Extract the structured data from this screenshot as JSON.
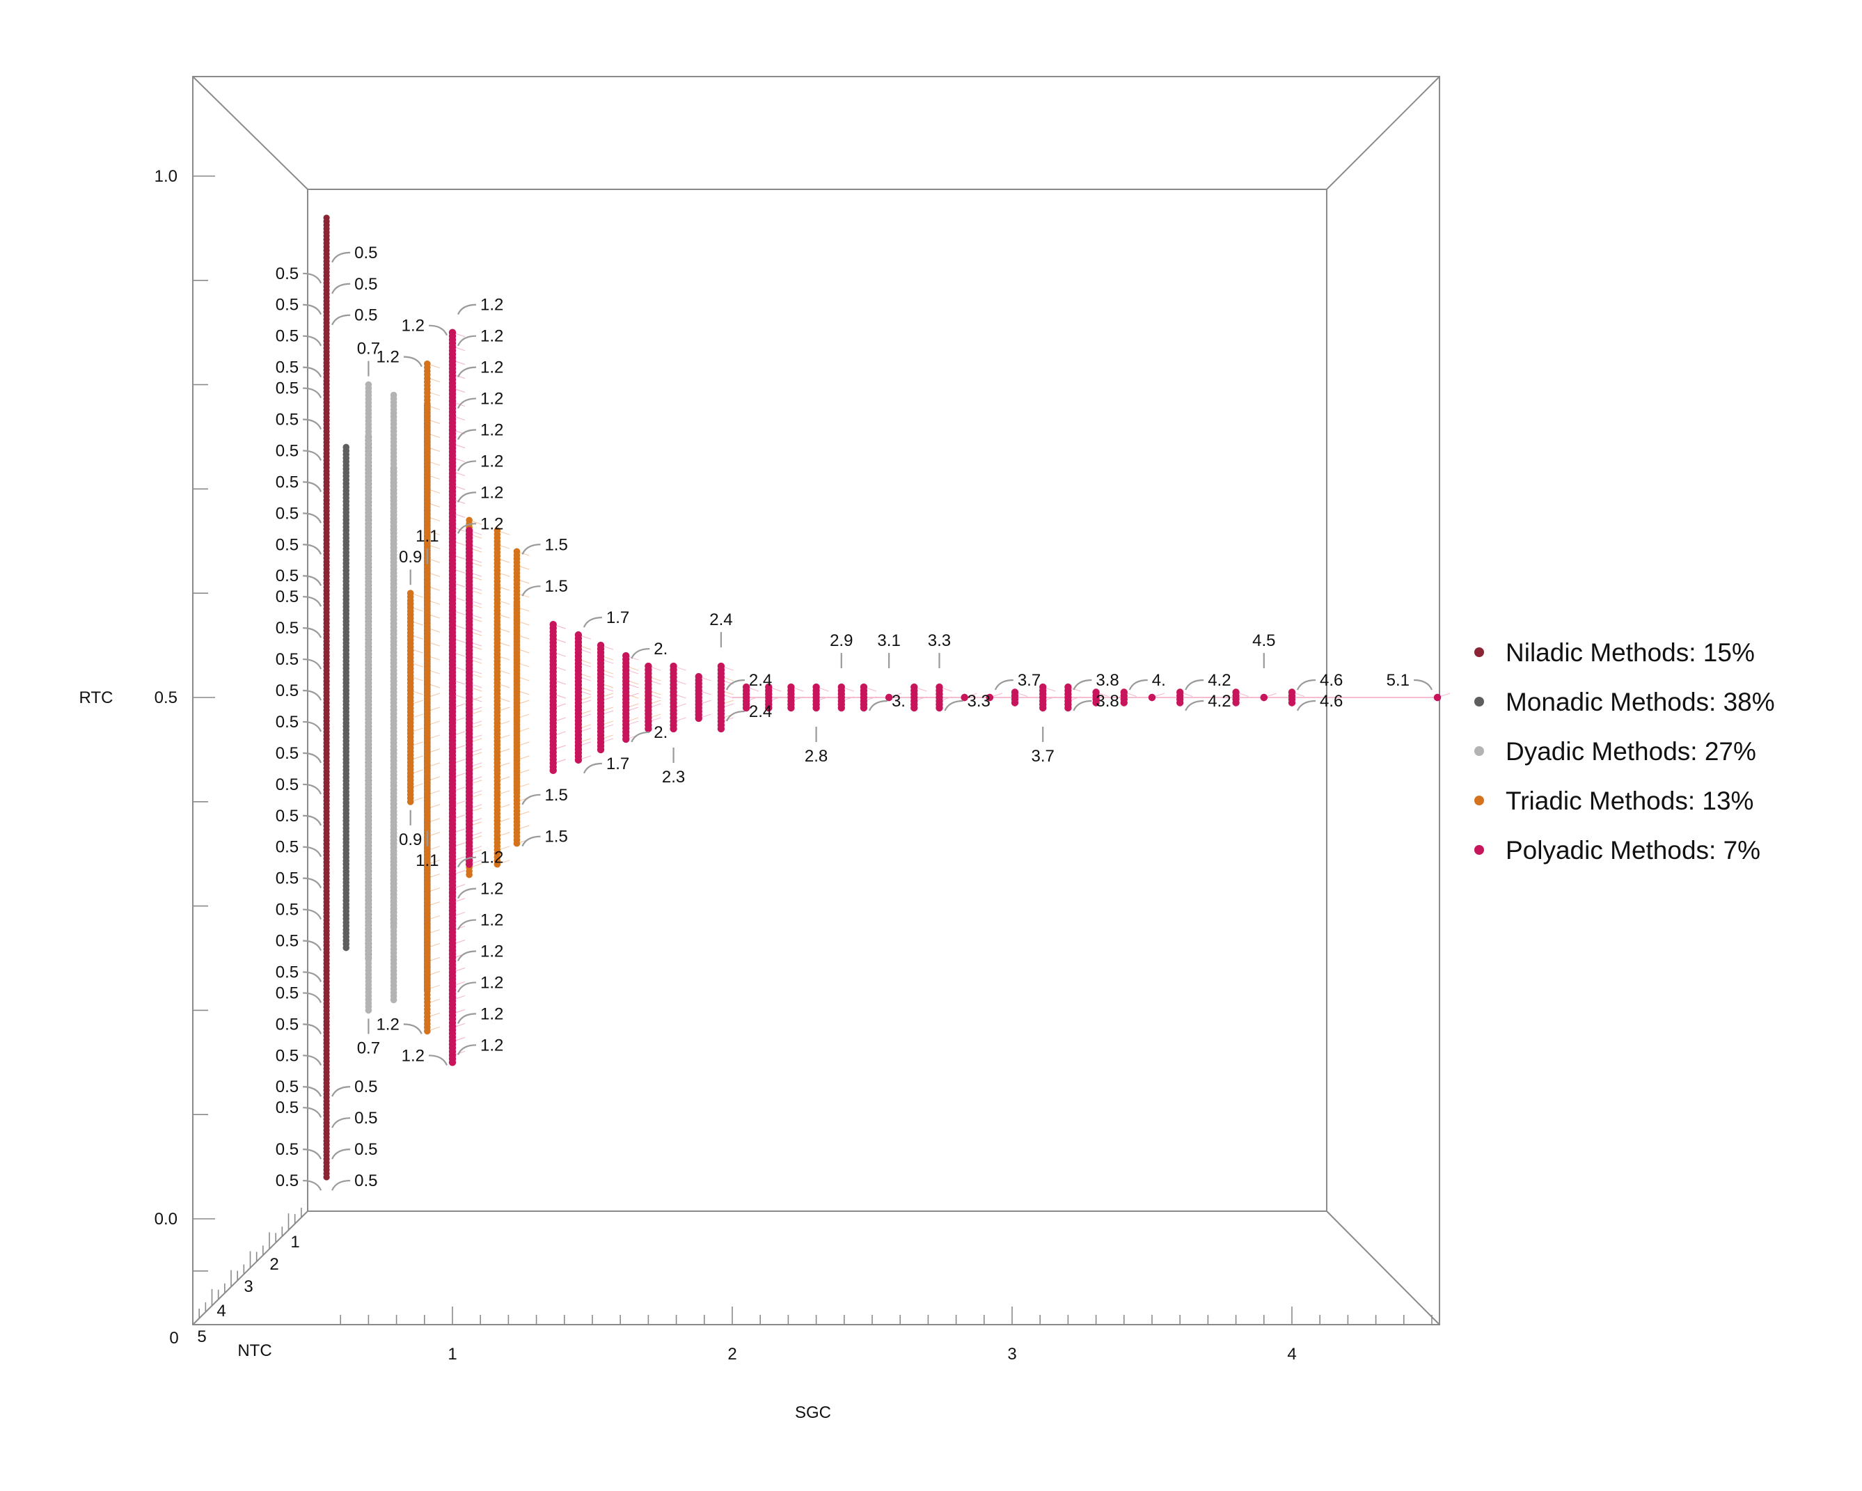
{
  "chart_data": {
    "type": "scatter",
    "projection": "3d",
    "grid": false,
    "legend_position": "right",
    "axes": {
      "x": {
        "label": "SGC",
        "ticks": [
          "1",
          "2",
          "3",
          "4"
        ],
        "range": [
          0.6,
          4.95
        ]
      },
      "y": {
        "label": "RTC",
        "ticks": [
          "0.0",
          "0.5",
          "1.0"
        ],
        "range": [
          -0.1,
          1.1
        ]
      },
      "z": {
        "label": "NTC",
        "ticks": [
          "0",
          "1",
          "2",
          "3",
          "4",
          "5"
        ]
      }
    },
    "legend": [
      {
        "name": "Niladic Methods: 15%",
        "color": "#8b2535"
      },
      {
        "name": "Monadic Methods: 38%",
        "color": "#5e5e5e"
      },
      {
        "name": "Dyadic Methods: 27%",
        "color": "#b3b3b3"
      },
      {
        "name": "Triadic Methods: 13%",
        "color": "#d4731c"
      },
      {
        "name": "Polyadic Methods: 7%",
        "color": "#c8145a"
      }
    ],
    "series": [
      {
        "name": "Niladic Methods: 15%",
        "color": "#8b2535",
        "columns": [
          {
            "x": 0.55,
            "y_min": 0.04,
            "y_max": 0.96
          }
        ]
      },
      {
        "name": "Monadic Methods: 38%",
        "color": "#5e5e5e",
        "columns": [
          {
            "x": 0.62,
            "y_min": 0.26,
            "y_max": 0.74
          },
          {
            "x": 0.7,
            "y_min": 0.25,
            "y_max": 0.75
          },
          {
            "x": 0.79,
            "y_min": 0.28,
            "y_max": 0.72
          },
          {
            "x": 0.91,
            "y_min": 0.22,
            "y_max": 0.78
          },
          {
            "x": 1.0,
            "y_min": 0.25,
            "y_max": 0.75
          }
        ]
      },
      {
        "name": "Dyadic Methods: 27%",
        "color": "#b3b3b3",
        "columns": [
          {
            "x": 0.7,
            "y_min": 0.2,
            "y_max": 0.8
          },
          {
            "x": 0.79,
            "y_min": 0.21,
            "y_max": 0.79
          },
          {
            "x": 0.85,
            "y_min": 0.41,
            "y_max": 0.59
          },
          {
            "x": 1.0,
            "y_min": 0.2,
            "y_max": 0.8
          },
          {
            "x": 1.06,
            "y_min": 0.38,
            "y_max": 0.62
          },
          {
            "x": 1.16,
            "y_min": 0.43,
            "y_max": 0.57
          },
          {
            "x": 1.23,
            "y_min": 0.41,
            "y_max": 0.59
          }
        ]
      },
      {
        "name": "Triadic Methods: 13%",
        "color": "#d4731c",
        "columns": [
          {
            "x": 0.85,
            "y_min": 0.4,
            "y_max": 0.6
          },
          {
            "x": 0.91,
            "y_min": 0.18,
            "y_max": 0.82
          },
          {
            "x": 1.0,
            "y_min": 0.15,
            "y_max": 0.85
          },
          {
            "x": 1.06,
            "y_min": 0.33,
            "y_max": 0.67
          },
          {
            "x": 1.16,
            "y_min": 0.34,
            "y_max": 0.66
          },
          {
            "x": 1.23,
            "y_min": 0.36,
            "y_max": 0.64
          },
          {
            "x": 1.36,
            "y_min": 0.43,
            "y_max": 0.57
          },
          {
            "x": 1.45,
            "y_min": 0.45,
            "y_max": 0.55
          },
          {
            "x": 1.53,
            "y_min": 0.46,
            "y_max": 0.54
          },
          {
            "x": 1.62,
            "y_min": 0.47,
            "y_max": 0.53
          },
          {
            "x": 1.7,
            "y_min": 0.48,
            "y_max": 0.52
          },
          {
            "x": 1.96,
            "y_min": 0.48,
            "y_max": 0.52
          }
        ]
      },
      {
        "name": "Polyadic Methods: 7%",
        "color": "#c8145a",
        "columns": [
          {
            "x": 1.0,
            "y_min": 0.15,
            "y_max": 0.85
          },
          {
            "x": 1.06,
            "y_min": 0.34,
            "y_max": 0.66
          },
          {
            "x": 1.36,
            "y_min": 0.43,
            "y_max": 0.57
          },
          {
            "x": 1.45,
            "y_min": 0.44,
            "y_max": 0.56
          },
          {
            "x": 1.53,
            "y_min": 0.45,
            "y_max": 0.55
          },
          {
            "x": 1.62,
            "y_min": 0.46,
            "y_max": 0.54
          },
          {
            "x": 1.7,
            "y_min": 0.47,
            "y_max": 0.53
          },
          {
            "x": 1.79,
            "y_min": 0.47,
            "y_max": 0.53
          },
          {
            "x": 1.88,
            "y_min": 0.48,
            "y_max": 0.52
          },
          {
            "x": 1.96,
            "y_min": 0.47,
            "y_max": 0.53
          },
          {
            "x": 2.05,
            "y_min": 0.49,
            "y_max": 0.51
          },
          {
            "x": 2.13,
            "y_min": 0.49,
            "y_max": 0.51
          },
          {
            "x": 2.21,
            "y_min": 0.49,
            "y_max": 0.51
          },
          {
            "x": 2.3,
            "y_min": 0.49,
            "y_max": 0.51
          },
          {
            "x": 2.39,
            "y_min": 0.49,
            "y_max": 0.51
          },
          {
            "x": 2.47,
            "y_min": 0.49,
            "y_max": 0.51
          },
          {
            "x": 2.56,
            "y_min": 0.5,
            "y_max": 0.5
          },
          {
            "x": 2.65,
            "y_min": 0.49,
            "y_max": 0.51
          },
          {
            "x": 2.74,
            "y_min": 0.49,
            "y_max": 0.51
          },
          {
            "x": 2.83,
            "y_min": 0.5,
            "y_max": 0.5
          },
          {
            "x": 2.92,
            "y_min": 0.5,
            "y_max": 0.5
          },
          {
            "x": 3.01,
            "y_min": 0.495,
            "y_max": 0.505
          },
          {
            "x": 3.11,
            "y_min": 0.49,
            "y_max": 0.51
          },
          {
            "x": 3.2,
            "y_min": 0.49,
            "y_max": 0.51
          },
          {
            "x": 3.3,
            "y_min": 0.495,
            "y_max": 0.505
          },
          {
            "x": 3.4,
            "y_min": 0.495,
            "y_max": 0.505
          },
          {
            "x": 3.5,
            "y_min": 0.5,
            "y_max": 0.5
          },
          {
            "x": 3.6,
            "y_min": 0.495,
            "y_max": 0.505
          },
          {
            "x": 3.8,
            "y_min": 0.495,
            "y_max": 0.505
          },
          {
            "x": 3.9,
            "y_min": 0.5,
            "y_max": 0.5
          },
          {
            "x": 4.0,
            "y_min": 0.495,
            "y_max": 0.505
          },
          {
            "x": 4.52,
            "y_min": 0.5,
            "y_max": 0.5
          }
        ]
      }
    ],
    "annotations": [
      {
        "text": "0.5",
        "x": 0.55,
        "y": 0.92,
        "side": "right"
      },
      {
        "text": "0.5",
        "x": 0.55,
        "y": 0.89,
        "side": "right"
      },
      {
        "text": "0.5",
        "x": 0.55,
        "y": 0.86,
        "side": "right"
      },
      {
        "text": "0.5",
        "x": 0.55,
        "y": 0.12,
        "side": "right"
      },
      {
        "text": "0.5",
        "x": 0.55,
        "y": 0.09,
        "side": "right"
      },
      {
        "text": "0.5",
        "x": 0.55,
        "y": 0.06,
        "side": "right"
      },
      {
        "text": "0.5",
        "x": 0.55,
        "y": 0.03,
        "side": "right"
      },
      {
        "text": "0.5",
        "x": 0.55,
        "y": 0.9,
        "side": "left"
      },
      {
        "text": "0.5",
        "x": 0.55,
        "y": 0.87,
        "side": "left"
      },
      {
        "text": "0.5",
        "x": 0.55,
        "y": 0.84,
        "side": "left"
      },
      {
        "text": "0.5",
        "x": 0.55,
        "y": 0.81,
        "side": "left"
      },
      {
        "text": "0.5",
        "x": 0.55,
        "y": 0.79,
        "side": "left"
      },
      {
        "text": "0.5",
        "x": 0.55,
        "y": 0.76,
        "side": "left"
      },
      {
        "text": "0.5",
        "x": 0.55,
        "y": 0.73,
        "side": "left"
      },
      {
        "text": "0.5",
        "x": 0.55,
        "y": 0.7,
        "side": "left"
      },
      {
        "text": "0.5",
        "x": 0.55,
        "y": 0.67,
        "side": "left"
      },
      {
        "text": "0.5",
        "x": 0.55,
        "y": 0.64,
        "side": "left"
      },
      {
        "text": "0.5",
        "x": 0.55,
        "y": 0.61,
        "side": "left"
      },
      {
        "text": "0.5",
        "x": 0.55,
        "y": 0.59,
        "side": "left"
      },
      {
        "text": "0.5",
        "x": 0.55,
        "y": 0.56,
        "side": "left"
      },
      {
        "text": "0.5",
        "x": 0.55,
        "y": 0.53,
        "side": "left"
      },
      {
        "text": "0.5",
        "x": 0.55,
        "y": 0.5,
        "side": "left"
      },
      {
        "text": "0.5",
        "x": 0.55,
        "y": 0.47,
        "side": "left"
      },
      {
        "text": "0.5",
        "x": 0.55,
        "y": 0.44,
        "side": "left"
      },
      {
        "text": "0.5",
        "x": 0.55,
        "y": 0.41,
        "side": "left"
      },
      {
        "text": "0.5",
        "x": 0.55,
        "y": 0.38,
        "side": "left"
      },
      {
        "text": "0.5",
        "x": 0.55,
        "y": 0.35,
        "side": "left"
      },
      {
        "text": "0.5",
        "x": 0.55,
        "y": 0.32,
        "side": "left"
      },
      {
        "text": "0.5",
        "x": 0.55,
        "y": 0.29,
        "side": "left"
      },
      {
        "text": "0.5",
        "x": 0.55,
        "y": 0.26,
        "side": "left"
      },
      {
        "text": "0.5",
        "x": 0.55,
        "y": 0.23,
        "side": "left"
      },
      {
        "text": "0.5",
        "x": 0.55,
        "y": 0.21,
        "side": "left"
      },
      {
        "text": "0.5",
        "x": 0.55,
        "y": 0.18,
        "side": "left"
      },
      {
        "text": "0.5",
        "x": 0.55,
        "y": 0.15,
        "side": "left"
      },
      {
        "text": "0.5",
        "x": 0.55,
        "y": 0.12,
        "side": "left"
      },
      {
        "text": "0.5",
        "x": 0.55,
        "y": 0.1,
        "side": "left"
      },
      {
        "text": "0.5",
        "x": 0.55,
        "y": 0.06,
        "side": "left"
      },
      {
        "text": "0.5",
        "x": 0.55,
        "y": 0.03,
        "side": "left"
      },
      {
        "text": "0.7",
        "x": 0.7,
        "y": 0.8,
        "side": "above"
      },
      {
        "text": "0.7",
        "x": 0.7,
        "y": 0.2,
        "side": "below"
      },
      {
        "text": "0.9",
        "x": 0.85,
        "y": 0.6,
        "side": "above"
      },
      {
        "text": "0.9",
        "x": 0.85,
        "y": 0.4,
        "side": "below"
      },
      {
        "text": "1.1",
        "x": 0.91,
        "y": 0.62,
        "side": "above"
      },
      {
        "text": "1.1",
        "x": 0.91,
        "y": 0.38,
        "side": "below"
      },
      {
        "text": "1.2",
        "x": 0.91,
        "y": 0.82,
        "side": "left"
      },
      {
        "text": "1.2",
        "x": 1.0,
        "y": 0.85,
        "side": "left"
      },
      {
        "text": "1.2",
        "x": 0.91,
        "y": 0.18,
        "side": "left"
      },
      {
        "text": "1.2",
        "x": 1.0,
        "y": 0.15,
        "side": "left"
      },
      {
        "text": "1.2",
        "x": 1.0,
        "y": 0.87,
        "side": "right"
      },
      {
        "text": "1.2",
        "x": 1.0,
        "y": 0.84,
        "side": "right"
      },
      {
        "text": "1.2",
        "x": 1.0,
        "y": 0.81,
        "side": "right"
      },
      {
        "text": "1.2",
        "x": 1.0,
        "y": 0.78,
        "side": "right"
      },
      {
        "text": "1.2",
        "x": 1.0,
        "y": 0.75,
        "side": "right"
      },
      {
        "text": "1.2",
        "x": 1.0,
        "y": 0.72,
        "side": "right"
      },
      {
        "text": "1.2",
        "x": 1.0,
        "y": 0.69,
        "side": "right"
      },
      {
        "text": "1.2",
        "x": 1.0,
        "y": 0.66,
        "side": "right"
      },
      {
        "text": "1.2",
        "x": 1.0,
        "y": 0.34,
        "side": "right"
      },
      {
        "text": "1.2",
        "x": 1.0,
        "y": 0.31,
        "side": "right"
      },
      {
        "text": "1.2",
        "x": 1.0,
        "y": 0.28,
        "side": "right"
      },
      {
        "text": "1.2",
        "x": 1.0,
        "y": 0.25,
        "side": "right"
      },
      {
        "text": "1.2",
        "x": 1.0,
        "y": 0.22,
        "side": "right"
      },
      {
        "text": "1.2",
        "x": 1.0,
        "y": 0.19,
        "side": "right"
      },
      {
        "text": "1.2",
        "x": 1.0,
        "y": 0.16,
        "side": "right"
      },
      {
        "text": "1.5",
        "x": 1.23,
        "y": 0.64,
        "side": "right"
      },
      {
        "text": "1.5",
        "x": 1.23,
        "y": 0.6,
        "side": "right"
      },
      {
        "text": "1.5",
        "x": 1.23,
        "y": 0.4,
        "side": "right"
      },
      {
        "text": "1.5",
        "x": 1.23,
        "y": 0.36,
        "side": "right"
      },
      {
        "text": "1.7",
        "x": 1.45,
        "y": 0.57,
        "side": "right"
      },
      {
        "text": "1.7",
        "x": 1.45,
        "y": 0.43,
        "side": "right"
      },
      {
        "text": "2.",
        "x": 1.62,
        "y": 0.54,
        "side": "right"
      },
      {
        "text": "2.",
        "x": 1.62,
        "y": 0.46,
        "side": "right"
      },
      {
        "text": "2.3",
        "x": 1.79,
        "y": 0.46,
        "side": "below"
      },
      {
        "text": "2.4",
        "x": 1.96,
        "y": 0.54,
        "side": "above"
      },
      {
        "text": "2.4",
        "x": 1.96,
        "y": 0.51,
        "side": "right"
      },
      {
        "text": "2.4",
        "x": 1.96,
        "y": 0.48,
        "side": "right"
      },
      {
        "text": "2.8",
        "x": 2.3,
        "y": 0.48,
        "side": "below"
      },
      {
        "text": "2.9",
        "x": 2.39,
        "y": 0.52,
        "side": "above"
      },
      {
        "text": "3.",
        "x": 2.47,
        "y": 0.49,
        "side": "right"
      },
      {
        "text": "3.1",
        "x": 2.56,
        "y": 0.52,
        "side": "above"
      },
      {
        "text": "3.3",
        "x": 2.74,
        "y": 0.52,
        "side": "above"
      },
      {
        "text": "3.3",
        "x": 2.74,
        "y": 0.49,
        "side": "right"
      },
      {
        "text": "3.7",
        "x": 2.92,
        "y": 0.51,
        "side": "right"
      },
      {
        "text": "3.7",
        "x": 3.11,
        "y": 0.48,
        "side": "below"
      },
      {
        "text": "3.8",
        "x": 3.2,
        "y": 0.51,
        "side": "right"
      },
      {
        "text": "3.8",
        "x": 3.2,
        "y": 0.49,
        "side": "right"
      },
      {
        "text": "4.",
        "x": 3.4,
        "y": 0.51,
        "side": "right"
      },
      {
        "text": "4.2",
        "x": 3.6,
        "y": 0.51,
        "side": "right"
      },
      {
        "text": "4.2",
        "x": 3.6,
        "y": 0.49,
        "side": "right"
      },
      {
        "text": "4.5",
        "x": 3.9,
        "y": 0.52,
        "side": "above"
      },
      {
        "text": "4.6",
        "x": 4.0,
        "y": 0.51,
        "side": "right"
      },
      {
        "text": "4.6",
        "x": 4.0,
        "y": 0.49,
        "side": "right"
      },
      {
        "text": "5.1",
        "x": 4.52,
        "y": 0.51,
        "side": "left"
      }
    ]
  }
}
